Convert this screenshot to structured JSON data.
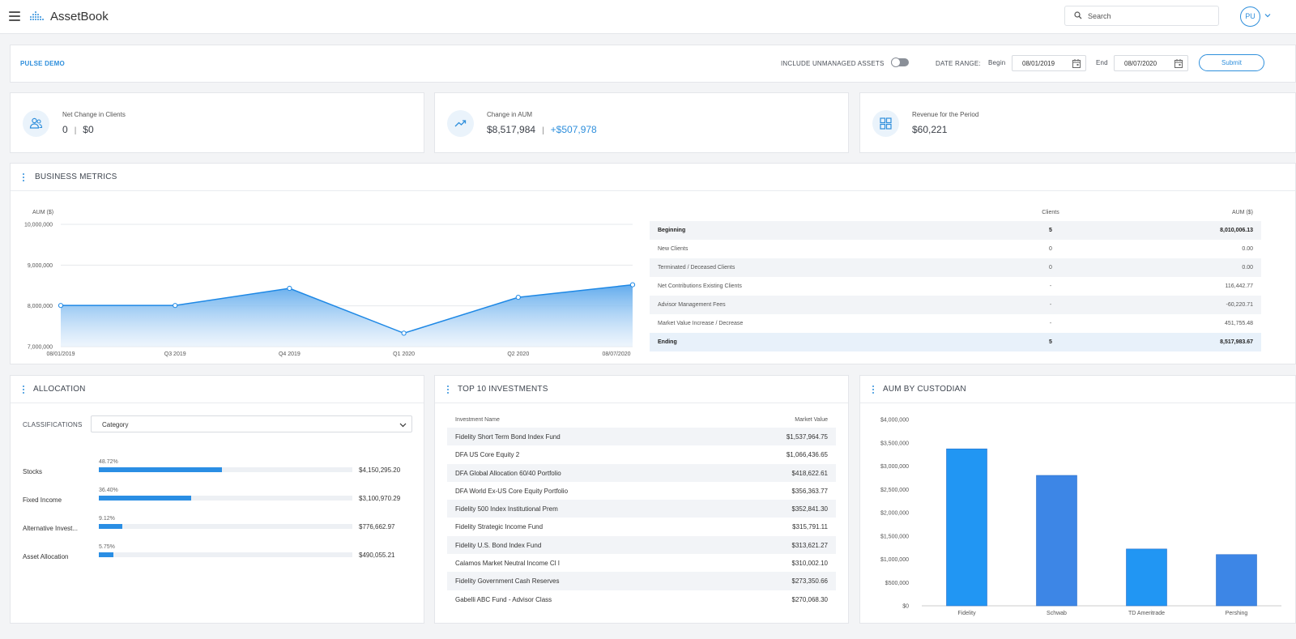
{
  "header": {
    "app_name": "AssetBook",
    "search_placeholder": "Search",
    "user_initials": "PU"
  },
  "filters": {
    "account_name": "PULSE DEMO",
    "include_unmanaged_label": "INCLUDE UNMANAGED ASSETS",
    "include_unmanaged": false,
    "date_range_label": "DATE RANGE:",
    "begin_label": "Begin",
    "begin_date": "08/01/2019",
    "end_label": "End",
    "end_date": "08/07/2020",
    "submit_label": "Submit"
  },
  "kpis": [
    {
      "label": "Net Change in Clients",
      "value": "0",
      "sep": "|",
      "secondary": "$0",
      "icon": "users-icon"
    },
    {
      "label": "Change in AUM",
      "value": "$8,517,984",
      "sep": "|",
      "secondary": "+$507,978",
      "icon": "trending-up-icon"
    },
    {
      "label": "Revenue for the Period",
      "value": "$60,221",
      "icon": "grid-icon"
    }
  ],
  "business_metrics": {
    "title": "BUSINESS METRICS",
    "table": {
      "headers": [
        "",
        "Clients",
        "AUM ($)"
      ],
      "rows": [
        {
          "label": "Beginning",
          "clients": "5",
          "aum": "8,010,006.13"
        },
        {
          "label": "New Clients",
          "clients": "0",
          "aum": "0.00"
        },
        {
          "label": "Terminated / Deceased Clients",
          "clients": "0",
          "aum": "0.00"
        },
        {
          "label": "Net Contributions Existing Clients",
          "clients": "-",
          "aum": "116,442.77"
        },
        {
          "label": "Advisor Management Fees",
          "clients": "-",
          "aum": "-60,220.71"
        },
        {
          "label": "Market Value Increase / Decrease",
          "clients": "-",
          "aum": "451,755.48"
        },
        {
          "label": "Ending",
          "clients": "5",
          "aum": "8,517,983.67"
        }
      ]
    }
  },
  "allocation": {
    "title": "ALLOCATION",
    "classifications_label": "CLASSIFICATIONS",
    "classification_selected": "Category",
    "items": [
      {
        "name": "Stocks",
        "pct_label": "48.72%",
        "pct": 48.72,
        "amount": "$4,150,295.20"
      },
      {
        "name": "Fixed Income",
        "pct_label": "36.40%",
        "pct": 36.4,
        "amount": "$3,100,970.29"
      },
      {
        "name": "Alternative Invest...",
        "pct_label": "9.12%",
        "pct": 9.12,
        "amount": "$776,662.97"
      },
      {
        "name": "Asset Allocation",
        "pct_label": "5.75%",
        "pct": 5.75,
        "amount": "$490,055.21"
      }
    ]
  },
  "top_investments": {
    "title": "TOP 10 INVESTMENTS",
    "headers": [
      "Investment Name",
      "Market Value"
    ],
    "rows": [
      {
        "name": "Fidelity Short Term Bond Index Fund",
        "value": "$1,537,964.75"
      },
      {
        "name": "DFA US Core Equity 2",
        "value": "$1,066,436.65"
      },
      {
        "name": "DFA Global Allocation 60/40 Portfolio",
        "value": "$418,622.61"
      },
      {
        "name": "DFA World Ex-US Core Equity Portfolio",
        "value": "$356,363.77"
      },
      {
        "name": "Fidelity 500 Index Institutional Prem",
        "value": "$352,841.30"
      },
      {
        "name": "Fidelity Strategic Income Fund",
        "value": "$315,791.11"
      },
      {
        "name": "Fidelity U.S. Bond Index Fund",
        "value": "$313,621.27"
      },
      {
        "name": "Calamos Market Neutral Income Cl I",
        "value": "$310,002.10"
      },
      {
        "name": "Fidelity Government Cash Reserves",
        "value": "$273,350.66"
      },
      {
        "name": "Gabelli ABC Fund - Advisor Class",
        "value": "$270,068.30"
      }
    ]
  },
  "aum_by_custodian": {
    "title": "AUM BY CUSTODIAN"
  },
  "chart_data": [
    {
      "type": "area",
      "ylabel": "AUM ($)",
      "x": [
        "08/01/2019",
        "Q3 2019",
        "Q4 2019",
        "Q1 2020",
        "Q2 2020",
        "08/07/2020"
      ],
      "values": [
        8010006,
        8010000,
        8430000,
        7330000,
        8210000,
        8517984
      ],
      "ylim": [
        7000000,
        10000000
      ],
      "yticks": [
        "7,000,000",
        "8,000,000",
        "9,000,000",
        "10,000,000"
      ],
      "grid": true,
      "color": "#1e88e5"
    },
    {
      "type": "bar",
      "categories": [
        "Fidelity",
        "Schwab",
        "TD Ameritrade",
        "Pershing"
      ],
      "values": [
        3370000,
        2800000,
        1220000,
        1100000
      ],
      "ylim": [
        0,
        4000000
      ],
      "yticks": [
        "$0",
        "$500,000",
        "$1,000,000",
        "$1,500,000",
        "$2,000,000",
        "$2,500,000",
        "$3,000,000",
        "$3,500,000",
        "$4,000,000"
      ],
      "colors": [
        "#2196f3",
        "#3d86e6"
      ]
    }
  ]
}
